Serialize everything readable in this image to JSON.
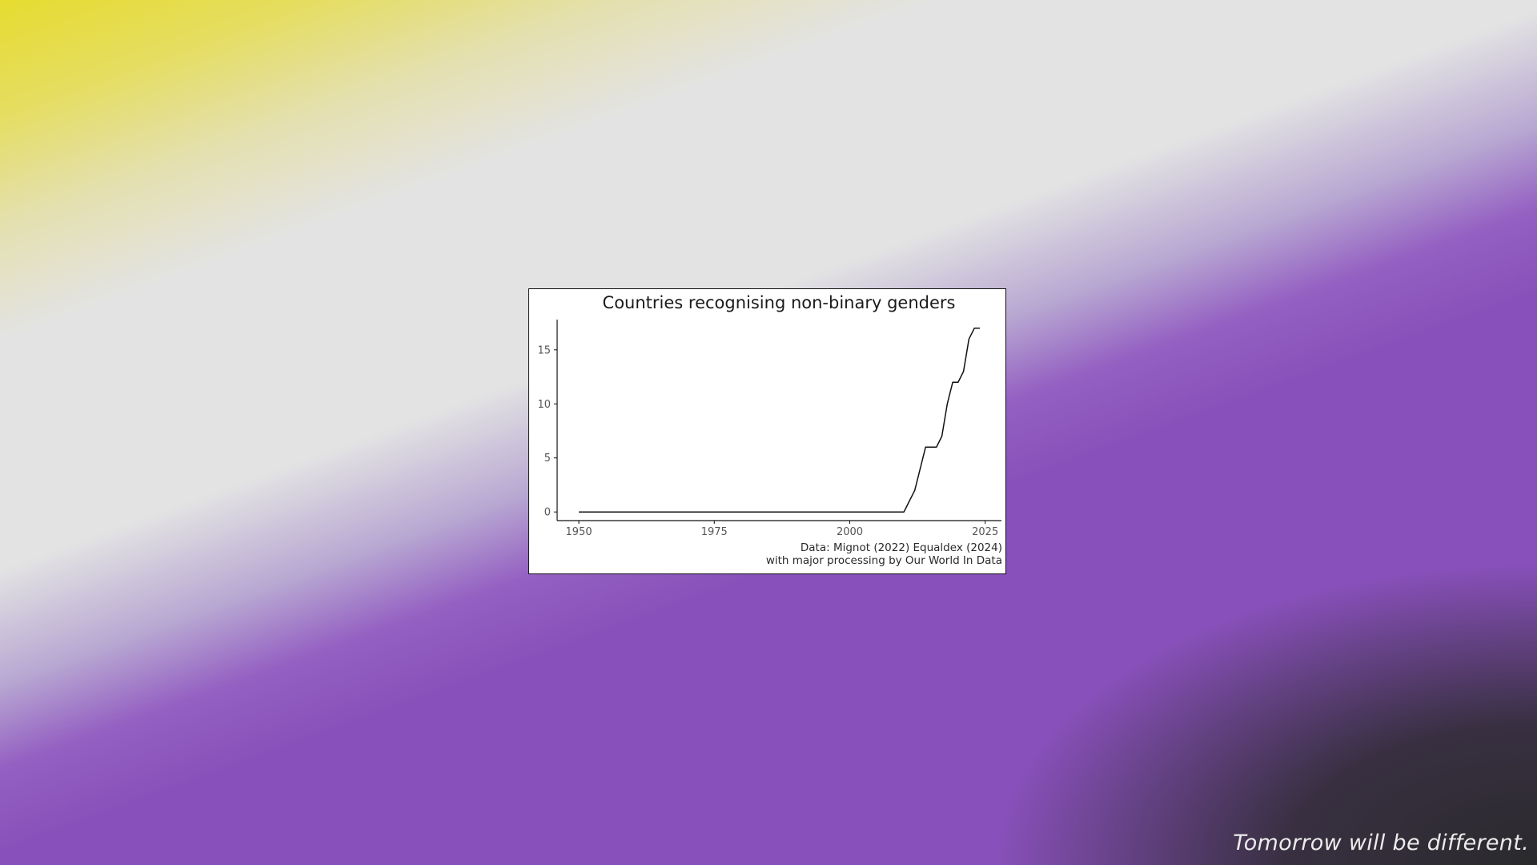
{
  "desktop": {
    "tagline": "Tomorrow will be different.",
    "colors": {
      "yellow": "#e6dc30",
      "light": "#e3e3e3",
      "purple": "#8850ba",
      "dark": "#2a2a2c"
    }
  },
  "widget": {
    "caption_line1": "Data:  Mignot (2022) Equaldex (2024)",
    "caption_line2": "with major processing by Our World In Data"
  },
  "chart_data": {
    "type": "line",
    "title": "Countries recognising non-binary genders",
    "xlabel": "",
    "ylabel": "",
    "xlim": [
      1946,
      2028
    ],
    "ylim": [
      -0.8,
      17.8
    ],
    "x_ticks": [
      1950,
      1975,
      2000,
      2025
    ],
    "y_ticks": [
      0,
      5,
      10,
      15
    ],
    "grid": false,
    "legend": "none",
    "series": [
      {
        "color": "#111111",
        "x": [
          1950,
          2010,
          2012,
          2014,
          2016,
          2017,
          2018,
          2019,
          2020,
          2021,
          2022,
          2023,
          2024
        ],
        "y": [
          0,
          0,
          2,
          6,
          6,
          7,
          10,
          12,
          12,
          13,
          16,
          17,
          17
        ]
      }
    ]
  }
}
